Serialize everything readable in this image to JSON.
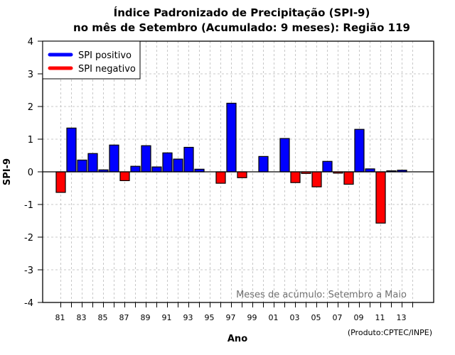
{
  "chart_data": {
    "type": "bar",
    "title": [
      "Índice Padronizado de Precipitação (SPI-9)",
      "no mês de Setembro (Acumulado: 9 meses): Região 119"
    ],
    "xlabel": "Ano",
    "ylabel": "SPI-9",
    "ylim": [
      -4,
      4
    ],
    "yticks": [
      "4",
      "3",
      "2",
      "1",
      "0",
      "-1",
      "-2",
      "-3",
      "-4"
    ],
    "ytick_values": [
      4,
      3,
      2,
      1,
      0,
      -1,
      -2,
      -3,
      -4
    ],
    "categories": [
      "81",
      "82",
      "83",
      "84",
      "85",
      "86",
      "87",
      "88",
      "89",
      "90",
      "91",
      "92",
      "93",
      "94",
      "95",
      "96",
      "97",
      "98",
      "99",
      "00",
      "01",
      "02",
      "03",
      "04",
      "05",
      "06",
      "07",
      "08",
      "09",
      "10",
      "11",
      "12",
      "13",
      "14"
    ],
    "xtick_labels": [
      "81",
      "",
      "83",
      "",
      "85",
      "",
      "87",
      "",
      "89",
      "",
      "91",
      "",
      "93",
      "",
      "95",
      "",
      "97",
      "",
      "99",
      "",
      "01",
      "",
      "03",
      "",
      "05",
      "",
      "07",
      "",
      "09",
      "",
      "11",
      "",
      "13",
      ""
    ],
    "values": [
      -0.63,
      1.34,
      0.36,
      0.56,
      0.06,
      0.82,
      -0.27,
      0.17,
      0.8,
      0.15,
      0.58,
      0.39,
      0.75,
      0.08,
      null,
      -0.35,
      2.1,
      -0.18,
      null,
      0.47,
      null,
      1.02,
      -0.33,
      -0.05,
      -0.46,
      0.32,
      -0.04,
      -0.38,
      1.3,
      0.09,
      -1.57,
      0.03,
      0.05,
      null
    ],
    "grid": true,
    "legend": {
      "placement": "top-left",
      "entries": [
        {
          "label": "SPI positivo",
          "color": "#0000ff"
        },
        {
          "label": "SPI negativo",
          "color": "#ff0000"
        }
      ]
    },
    "annotation": "Meses de acúmulo: Setembro a Maio",
    "credit": "(Produto:CPTEC/INPE)",
    "colors": {
      "positive": "#0000ff",
      "negative": "#ff0000",
      "grid": "#c8c8c8",
      "annotation": "#707070"
    }
  }
}
